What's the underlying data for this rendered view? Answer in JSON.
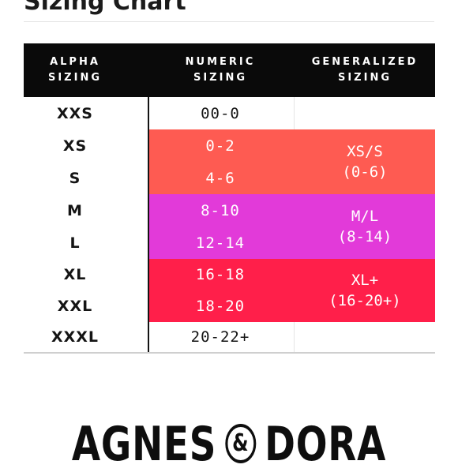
{
  "page": {
    "title": "Sizing Chart"
  },
  "table": {
    "headers": {
      "alpha": "ALPHA\nSIZING",
      "numeric": "NUMERIC\nSIZING",
      "generalized": "GENERALIZED\nSIZING"
    },
    "rows": [
      {
        "alpha": "XXS",
        "numeric": "00-0"
      },
      {
        "alpha": "XS",
        "numeric": "0-2"
      },
      {
        "alpha": "S",
        "numeric": "4-6"
      },
      {
        "alpha": "M",
        "numeric": "8-10"
      },
      {
        "alpha": "L",
        "numeric": "12-14"
      },
      {
        "alpha": "XL",
        "numeric": "16-18"
      },
      {
        "alpha": "XXL",
        "numeric": "18-20"
      },
      {
        "alpha": "XXXL",
        "numeric": "20-22+"
      }
    ],
    "generalized": [
      {
        "label": "XS/S\n(0-6)",
        "color": "#fe5b52"
      },
      {
        "label": "M/L\n(8-14)",
        "color": "#e23ad9"
      },
      {
        "label": "XL+\n(16-20+)",
        "color": "#ff1f4a"
      }
    ]
  },
  "brand": {
    "name_left": "AGNES",
    "ampersand": "&",
    "name_right": "DORA"
  }
}
